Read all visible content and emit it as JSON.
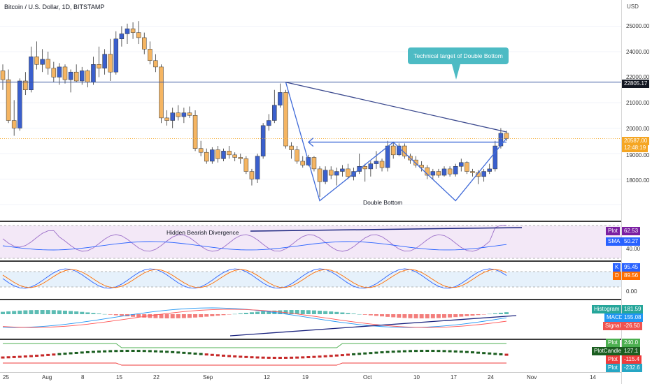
{
  "header": {
    "title": "Bitcoin / U.S. Dollar, 1D, BITSTAMP",
    "currency": "USD"
  },
  "price_axis": {
    "ticks": [
      "25000.00",
      "24000.00",
      "22000.00",
      "21000.00",
      "20000.00",
      "19000.00",
      "18000.00"
    ]
  },
  "time_axis": {
    "ticks": [
      "25",
      "Aug",
      "8",
      "15",
      "22",
      "Sep",
      "12",
      "19",
      "Oct",
      "10",
      "17",
      "24",
      "Nov",
      "14"
    ]
  },
  "annotations": {
    "callout": "Technical target of Double Bottom",
    "double_bottom": "Double Bottom",
    "divergence": "Hidden Bearish Divergence"
  },
  "price_tags": {
    "resistance": "22805.17",
    "last_price": "20587.00",
    "countdown": "12:48:19"
  },
  "rsi": {
    "plot_label": "Plot",
    "plot_value": "62.53",
    "sma_label": "SMA",
    "sma_value": "50.27",
    "level": "40.00"
  },
  "stoch": {
    "k_label": "K",
    "k_value": "95.45",
    "d_label": "D",
    "d_value": "89.56",
    "level": "0.00"
  },
  "macd": {
    "hist_label": "Histogram",
    "hist_value": "181.59",
    "macd_label": "MACD",
    "macd_value": "155.08",
    "signal_label": "Signal",
    "signal_value": "-26.50"
  },
  "custom": {
    "plot1_label": "Plot",
    "plot1_value": "240.0",
    "candle_label": "PlotCandle",
    "candle_value": "127.1",
    "plot2_label": "Plot",
    "plot2_value": "-115.4",
    "plot3_label": "Plot",
    "plot3_value": "-232.6"
  },
  "colors": {
    "up": "#3a5fcd",
    "down": "#f5b562",
    "accent": "#4dbbc4",
    "trend": "#3c4a8f",
    "rsi": "#9c6fc9",
    "sma": "#2962ff",
    "k": "#2962ff",
    "d": "#ff6d00",
    "hist_up": "#26a69a",
    "hist_down": "#ef5350",
    "macd": "#2196f3",
    "signal": "#ff5252"
  },
  "chart_data": {
    "type": "candlestick",
    "symbol": "Bitcoin / U.S. Dollar",
    "interval": "1D",
    "exchange": "BITSTAMP",
    "ylim": [
      17800,
      25800
    ],
    "series": [
      {
        "o": 23250,
        "h": 23500,
        "l": 22500,
        "c": 22900
      },
      {
        "o": 22900,
        "h": 23300,
        "l": 21200,
        "c": 21300
      },
      {
        "o": 21300,
        "h": 22100,
        "l": 20700,
        "c": 21000
      },
      {
        "o": 21000,
        "h": 22950,
        "l": 20900,
        "c": 22850
      },
      {
        "o": 22850,
        "h": 23200,
        "l": 22300,
        "c": 22500
      },
      {
        "o": 22500,
        "h": 24200,
        "l": 22400,
        "c": 23800
      },
      {
        "o": 23800,
        "h": 24400,
        "l": 23300,
        "c": 23500
      },
      {
        "o": 23500,
        "h": 24100,
        "l": 23200,
        "c": 23700
      },
      {
        "o": 23700,
        "h": 24000,
        "l": 23100,
        "c": 23350
      },
      {
        "o": 23350,
        "h": 23600,
        "l": 22800,
        "c": 23000
      },
      {
        "o": 23000,
        "h": 23550,
        "l": 22700,
        "c": 23400
      },
      {
        "o": 23400,
        "h": 23500,
        "l": 22750,
        "c": 22900
      },
      {
        "o": 22900,
        "h": 23300,
        "l": 22400,
        "c": 23200
      },
      {
        "o": 23200,
        "h": 23500,
        "l": 22800,
        "c": 22850
      },
      {
        "o": 22850,
        "h": 23400,
        "l": 22700,
        "c": 23250
      },
      {
        "o": 23250,
        "h": 23300,
        "l": 22600,
        "c": 22800
      },
      {
        "o": 22800,
        "h": 23800,
        "l": 22700,
        "c": 23500
      },
      {
        "o": 23500,
        "h": 24200,
        "l": 23000,
        "c": 23350
      },
      {
        "o": 23350,
        "h": 24100,
        "l": 23100,
        "c": 23900
      },
      {
        "o": 23900,
        "h": 24500,
        "l": 22850,
        "c": 23200
      },
      {
        "o": 23200,
        "h": 24800,
        "l": 23100,
        "c": 24500
      },
      {
        "o": 24500,
        "h": 25000,
        "l": 24200,
        "c": 24700
      },
      {
        "o": 24700,
        "h": 25100,
        "l": 24300,
        "c": 24900
      },
      {
        "o": 24900,
        "h": 25150,
        "l": 24500,
        "c": 24750
      },
      {
        "o": 24750,
        "h": 25200,
        "l": 24300,
        "c": 24550
      },
      {
        "o": 24550,
        "h": 24750,
        "l": 23900,
        "c": 24100
      },
      {
        "o": 24100,
        "h": 24400,
        "l": 23500,
        "c": 23650
      },
      {
        "o": 23650,
        "h": 23900,
        "l": 23200,
        "c": 23400
      },
      {
        "o": 23400,
        "h": 23500,
        "l": 21200,
        "c": 21400
      },
      {
        "o": 21400,
        "h": 21700,
        "l": 21100,
        "c": 21300
      },
      {
        "o": 21300,
        "h": 21800,
        "l": 21000,
        "c": 21600
      },
      {
        "o": 21600,
        "h": 21900,
        "l": 21300,
        "c": 21450
      },
      {
        "o": 21450,
        "h": 21800,
        "l": 21200,
        "c": 21600
      },
      {
        "o": 21600,
        "h": 21850,
        "l": 21400,
        "c": 21500
      },
      {
        "o": 21500,
        "h": 21700,
        "l": 20100,
        "c": 20200
      },
      {
        "o": 20200,
        "h": 20500,
        "l": 19900,
        "c": 20050
      },
      {
        "o": 20050,
        "h": 20200,
        "l": 19600,
        "c": 19700
      },
      {
        "o": 19700,
        "h": 20250,
        "l": 19600,
        "c": 20150
      },
      {
        "o": 20150,
        "h": 20300,
        "l": 19650,
        "c": 19800
      },
      {
        "o": 19800,
        "h": 20200,
        "l": 19700,
        "c": 20100
      },
      {
        "o": 20100,
        "h": 20300,
        "l": 19800,
        "c": 19950
      },
      {
        "o": 19950,
        "h": 20050,
        "l": 19700,
        "c": 19850
      },
      {
        "o": 19850,
        "h": 20000,
        "l": 19600,
        "c": 19800
      },
      {
        "o": 19800,
        "h": 19900,
        "l": 19200,
        "c": 19300
      },
      {
        "o": 19300,
        "h": 19400,
        "l": 18750,
        "c": 19000
      },
      {
        "o": 19000,
        "h": 20000,
        "l": 18850,
        "c": 19900
      },
      {
        "o": 19900,
        "h": 21200,
        "l": 19800,
        "c": 21100
      },
      {
        "o": 21100,
        "h": 21550,
        "l": 20900,
        "c": 21300
      },
      {
        "o": 21300,
        "h": 22500,
        "l": 21200,
        "c": 21900
      },
      {
        "o": 21900,
        "h": 22750,
        "l": 21800,
        "c": 22400
      },
      {
        "o": 22400,
        "h": 22500,
        "l": 20200,
        "c": 20300
      },
      {
        "o": 20300,
        "h": 20450,
        "l": 19800,
        "c": 20150
      },
      {
        "o": 20150,
        "h": 20300,
        "l": 19600,
        "c": 19700
      },
      {
        "o": 19700,
        "h": 19900,
        "l": 19450,
        "c": 19550
      },
      {
        "o": 19550,
        "h": 19950,
        "l": 19500,
        "c": 19850
      },
      {
        "o": 19850,
        "h": 19900,
        "l": 19300,
        "c": 19400
      },
      {
        "o": 19400,
        "h": 19500,
        "l": 18300,
        "c": 18900
      },
      {
        "o": 18900,
        "h": 19500,
        "l": 18800,
        "c": 19350
      },
      {
        "o": 19350,
        "h": 19500,
        "l": 19000,
        "c": 19150
      },
      {
        "o": 19150,
        "h": 19450,
        "l": 18750,
        "c": 19300
      },
      {
        "o": 19300,
        "h": 19550,
        "l": 19100,
        "c": 19400
      },
      {
        "o": 19400,
        "h": 19600,
        "l": 19000,
        "c": 19100
      },
      {
        "o": 19100,
        "h": 19450,
        "l": 18950,
        "c": 19300
      },
      {
        "o": 19300,
        "h": 20000,
        "l": 19200,
        "c": 19500
      },
      {
        "o": 19500,
        "h": 19600,
        "l": 18900,
        "c": 19400
      },
      {
        "o": 19400,
        "h": 19700,
        "l": 19100,
        "c": 19600
      },
      {
        "o": 19600,
        "h": 20100,
        "l": 19400,
        "c": 19700
      },
      {
        "o": 19700,
        "h": 19800,
        "l": 19300,
        "c": 19450
      },
      {
        "o": 19450,
        "h": 20500,
        "l": 19300,
        "c": 20300
      },
      {
        "o": 20300,
        "h": 20450,
        "l": 19800,
        "c": 19950
      },
      {
        "o": 19950,
        "h": 20400,
        "l": 19900,
        "c": 20300
      },
      {
        "o": 20300,
        "h": 20400,
        "l": 19800,
        "c": 19900
      },
      {
        "o": 19900,
        "h": 20000,
        "l": 19600,
        "c": 19750
      },
      {
        "o": 19750,
        "h": 19900,
        "l": 19450,
        "c": 19550
      },
      {
        "o": 19550,
        "h": 19700,
        "l": 19300,
        "c": 19450
      },
      {
        "o": 19450,
        "h": 19550,
        "l": 19000,
        "c": 19150
      },
      {
        "o": 19150,
        "h": 19400,
        "l": 19000,
        "c": 19300
      },
      {
        "o": 19300,
        "h": 19400,
        "l": 19050,
        "c": 19150
      },
      {
        "o": 19150,
        "h": 19500,
        "l": 19100,
        "c": 19400
      },
      {
        "o": 19400,
        "h": 19500,
        "l": 19100,
        "c": 19200
      },
      {
        "o": 19200,
        "h": 19600,
        "l": 19100,
        "c": 19500
      },
      {
        "o": 19500,
        "h": 19800,
        "l": 19300,
        "c": 19650
      },
      {
        "o": 19650,
        "h": 19700,
        "l": 19200,
        "c": 19300
      },
      {
        "o": 19300,
        "h": 19400,
        "l": 19100,
        "c": 19250
      },
      {
        "o": 19250,
        "h": 19350,
        "l": 18800,
        "c": 19100
      },
      {
        "o": 19100,
        "h": 19400,
        "l": 18900,
        "c": 19300
      },
      {
        "o": 19300,
        "h": 19600,
        "l": 19200,
        "c": 19400
      },
      {
        "o": 19400,
        "h": 20500,
        "l": 19300,
        "c": 20300
      },
      {
        "o": 20300,
        "h": 21000,
        "l": 20200,
        "c": 20800
      },
      {
        "o": 20800,
        "h": 20900,
        "l": 20500,
        "c": 20587
      }
    ]
  }
}
